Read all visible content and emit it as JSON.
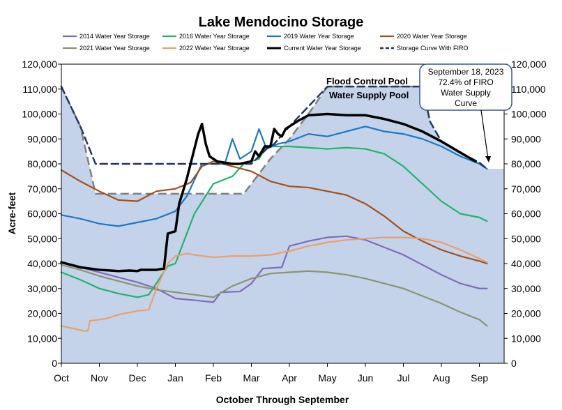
{
  "chart_data": {
    "type": "line",
    "title": "Lake Mendocino Storage",
    "xlabel": "October Through September",
    "ylabel": "Acre-feet",
    "ylim": [
      0,
      120000
    ],
    "xlim": [
      0,
      12
    ],
    "y_ticks": [
      0,
      10000,
      20000,
      30000,
      40000,
      50000,
      60000,
      70000,
      80000,
      90000,
      100000,
      110000,
      120000
    ],
    "y_tick_labels": [
      "0",
      "10,000",
      "20,000",
      "30,000",
      "40,000",
      "50,000",
      "60,000",
      "70,000",
      "80,000",
      "90,000",
      "100,000",
      "110,000",
      "120,000"
    ],
    "x_ticks": [
      0,
      1,
      2,
      3,
      4,
      5,
      6,
      7,
      8,
      9,
      10,
      11
    ],
    "x_tick_labels": [
      "Oct",
      "Nov",
      "Dec",
      "Jan",
      "Feb",
      "Mar",
      "Apr",
      "May",
      "Jun",
      "Jul",
      "Aug",
      "Sep"
    ],
    "grid": false,
    "legend_position": "top",
    "annotations": {
      "flood_control_pool": "Flood Control Pool",
      "water_supply_pool": "Water Supply Pool",
      "callout": [
        "September 18, 2023",
        "72.4% of FIRO",
        "Water Supply",
        "Curve"
      ]
    },
    "series": [
      {
        "name": "2014 Water Year Storage",
        "color": "#7f6bb8",
        "width": 2.2,
        "points": [
          [
            0,
            40500
          ],
          [
            0.5,
            38500
          ],
          [
            1,
            36500
          ],
          [
            1.5,
            34500
          ],
          [
            2,
            32500
          ],
          [
            2.5,
            30000
          ],
          [
            3,
            26000
          ],
          [
            3.5,
            25300
          ],
          [
            4,
            24500
          ],
          [
            4.2,
            28500
          ],
          [
            4.7,
            28800
          ],
          [
            5,
            32000
          ],
          [
            5.3,
            38000
          ],
          [
            5.8,
            38500
          ],
          [
            6,
            47000
          ],
          [
            6.5,
            49000
          ],
          [
            7,
            50500
          ],
          [
            7.5,
            51000
          ],
          [
            8,
            49500
          ],
          [
            8.5,
            46500
          ],
          [
            9,
            43500
          ],
          [
            9.5,
            39500
          ],
          [
            10,
            35500
          ],
          [
            10.5,
            32000
          ],
          [
            11,
            30000
          ],
          [
            11.2,
            30000
          ]
        ]
      },
      {
        "name": "2016 Water Year Storage",
        "color": "#22b36b",
        "width": 2.2,
        "points": [
          [
            0,
            36500
          ],
          [
            0.5,
            33500
          ],
          [
            1,
            30000
          ],
          [
            1.5,
            28000
          ],
          [
            2,
            26500
          ],
          [
            2.3,
            27500
          ],
          [
            2.8,
            39000
          ],
          [
            3,
            40000
          ],
          [
            3.5,
            60000
          ],
          [
            4,
            72000
          ],
          [
            4.5,
            75000
          ],
          [
            4.8,
            80000
          ],
          [
            5.2,
            82000
          ],
          [
            5.4,
            87000
          ],
          [
            6,
            87000
          ],
          [
            6.5,
            86500
          ],
          [
            7,
            86000
          ],
          [
            7.5,
            86500
          ],
          [
            8,
            86000
          ],
          [
            8.5,
            84000
          ],
          [
            9,
            79000
          ],
          [
            9.5,
            72000
          ],
          [
            10,
            65000
          ],
          [
            10.5,
            60000
          ],
          [
            11,
            58500
          ],
          [
            11.2,
            57000
          ]
        ]
      },
      {
        "name": "2019 Water Year Storage",
        "color": "#1f77c4",
        "width": 2.2,
        "points": [
          [
            0,
            59500
          ],
          [
            0.5,
            58000
          ],
          [
            1,
            56000
          ],
          [
            1.5,
            55000
          ],
          [
            2,
            56500
          ],
          [
            2.5,
            58000
          ],
          [
            3,
            61000
          ],
          [
            3.3,
            67000
          ],
          [
            3.7,
            80000
          ],
          [
            4,
            80000
          ],
          [
            4.3,
            80000
          ],
          [
            4.5,
            90000
          ],
          [
            4.7,
            82000
          ],
          [
            5,
            85000
          ],
          [
            5.2,
            94000
          ],
          [
            5.4,
            86000
          ],
          [
            5.7,
            88000
          ],
          [
            6,
            89000
          ],
          [
            6.5,
            92000
          ],
          [
            7,
            91000
          ],
          [
            7.5,
            93000
          ],
          [
            8,
            95000
          ],
          [
            8.5,
            93000
          ],
          [
            9,
            92000
          ],
          [
            9.5,
            90000
          ],
          [
            10,
            87000
          ],
          [
            10.5,
            83000
          ],
          [
            11,
            80000
          ],
          [
            11.2,
            78000
          ]
        ]
      },
      {
        "name": "2020 Water Year Storage",
        "color": "#a0501e",
        "width": 2.2,
        "points": [
          [
            0,
            77500
          ],
          [
            0.5,
            73000
          ],
          [
            1,
            69000
          ],
          [
            1.5,
            65500
          ],
          [
            2,
            65000
          ],
          [
            2.5,
            69000
          ],
          [
            3,
            70000
          ],
          [
            3.4,
            72500
          ],
          [
            3.7,
            79000
          ],
          [
            4,
            81000
          ],
          [
            4.5,
            79000
          ],
          [
            5,
            77000
          ],
          [
            5.5,
            73000
          ],
          [
            6,
            71000
          ],
          [
            6.5,
            70500
          ],
          [
            7,
            69000
          ],
          [
            7.5,
            67500
          ],
          [
            8,
            64000
          ],
          [
            8.5,
            59000
          ],
          [
            9,
            53000
          ],
          [
            9.5,
            49000
          ],
          [
            10,
            45500
          ],
          [
            10.5,
            43000
          ],
          [
            11,
            41000
          ],
          [
            11.2,
            40000
          ]
        ]
      },
      {
        "name": "2021 Water Year Storage",
        "color": "#8a9472",
        "width": 2.2,
        "points": [
          [
            0,
            39500
          ],
          [
            0.5,
            37500
          ],
          [
            1,
            35000
          ],
          [
            1.5,
            33000
          ],
          [
            2,
            31000
          ],
          [
            2.5,
            29500
          ],
          [
            3,
            28500
          ],
          [
            3.5,
            27500
          ],
          [
            4,
            26500
          ],
          [
            4.5,
            31000
          ],
          [
            5,
            34000
          ],
          [
            5.5,
            36000
          ],
          [
            6,
            36500
          ],
          [
            6.5,
            37000
          ],
          [
            7,
            36500
          ],
          [
            7.5,
            35500
          ],
          [
            8,
            34000
          ],
          [
            8.5,
            32000
          ],
          [
            9,
            30000
          ],
          [
            9.5,
            27000
          ],
          [
            10,
            24000
          ],
          [
            10.5,
            20500
          ],
          [
            11,
            17500
          ],
          [
            11.2,
            15000
          ]
        ]
      },
      {
        "name": "2022 Water Year Storage",
        "color": "#e8a070",
        "width": 2.2,
        "points": [
          [
            0,
            15000
          ],
          [
            0.3,
            14000
          ],
          [
            0.6,
            13000
          ],
          [
            0.7,
            13000
          ],
          [
            0.75,
            17000
          ],
          [
            1.2,
            18000
          ],
          [
            1.5,
            19500
          ],
          [
            2,
            21000
          ],
          [
            2.3,
            21500
          ],
          [
            2.5,
            30000
          ],
          [
            2.8,
            40000
          ],
          [
            3,
            43000
          ],
          [
            3.3,
            44000
          ],
          [
            3.5,
            43500
          ],
          [
            4,
            42500
          ],
          [
            4.5,
            43000
          ],
          [
            5,
            43000
          ],
          [
            5.5,
            43500
          ],
          [
            6,
            45000
          ],
          [
            6.5,
            47000
          ],
          [
            7,
            48500
          ],
          [
            7.5,
            49500
          ],
          [
            8,
            50000
          ],
          [
            8.5,
            50500
          ],
          [
            9,
            50500
          ],
          [
            9.5,
            50000
          ],
          [
            10,
            48500
          ],
          [
            10.5,
            45500
          ],
          [
            11,
            42000
          ],
          [
            11.2,
            40500
          ]
        ]
      },
      {
        "name": "Current Water Year Storage",
        "color": "#000000",
        "width": 3.5,
        "points": [
          [
            0,
            40500
          ],
          [
            0.5,
            38500
          ],
          [
            1,
            37500
          ],
          [
            1.5,
            37000
          ],
          [
            1.8,
            37200
          ],
          [
            2,
            37000
          ],
          [
            2.1,
            37500
          ],
          [
            2.5,
            37500
          ],
          [
            2.7,
            38000
          ],
          [
            2.8,
            52000
          ],
          [
            3,
            53000
          ],
          [
            3.1,
            64000
          ],
          [
            3.3,
            74000
          ],
          [
            3.4,
            80000
          ],
          [
            3.6,
            92000
          ],
          [
            3.7,
            96000
          ],
          [
            3.8,
            88000
          ],
          [
            3.9,
            83000
          ],
          [
            4.1,
            81000
          ],
          [
            4.5,
            80000
          ],
          [
            4.7,
            80000
          ],
          [
            5,
            81000
          ],
          [
            5.1,
            85000
          ],
          [
            5.2,
            83000
          ],
          [
            5.35,
            87000
          ],
          [
            5.5,
            87000
          ],
          [
            5.6,
            94000
          ],
          [
            5.7,
            92000
          ],
          [
            5.8,
            91000
          ],
          [
            5.9,
            94000
          ],
          [
            6.2,
            97000
          ],
          [
            6.5,
            99500
          ],
          [
            7,
            100000
          ],
          [
            7.5,
            99500
          ],
          [
            8,
            99500
          ],
          [
            8.5,
            98000
          ],
          [
            9,
            96000
          ],
          [
            9.5,
            93000
          ],
          [
            10,
            89000
          ],
          [
            10.5,
            84500
          ],
          [
            10.9,
            81000
          ]
        ]
      },
      {
        "name": "Storage Curve With FIRO",
        "color": "#1f3864",
        "width": 2.5,
        "dash": true,
        "points": [
          [
            0,
            111000
          ],
          [
            0.5,
            95000
          ],
          [
            0.9,
            80000
          ],
          [
            5.0,
            80000
          ],
          [
            5.2,
            83000
          ],
          [
            5.4,
            86000
          ],
          [
            5.6,
            88000
          ],
          [
            6.0,
            95000
          ],
          [
            6.5,
            103000
          ],
          [
            7,
            111000
          ],
          [
            8,
            111000
          ],
          [
            9,
            111000
          ],
          [
            9.5,
            111000
          ],
          [
            9.7,
            97000
          ],
          [
            10,
            89000
          ],
          [
            10.5,
            84500
          ],
          [
            11,
            80500
          ],
          [
            11.2,
            78000
          ]
        ]
      }
    ],
    "flood_pool_region": {
      "upper": [
        [
          0,
          120000
        ],
        [
          12,
          120000
        ]
      ],
      "lower": [
        [
          0,
          111000
        ],
        [
          0.5,
          95000
        ],
        [
          0.9,
          68000
        ],
        [
          4.8,
          68000
        ],
        [
          5.0,
          72000
        ],
        [
          5.5,
          82000
        ],
        [
          6.0,
          90000
        ],
        [
          6.5,
          100000
        ],
        [
          7,
          111000
        ],
        [
          9.5,
          111000
        ],
        [
          9.7,
          97000
        ],
        [
          10,
          89000
        ],
        [
          10.5,
          84500
        ],
        [
          11,
          80500
        ],
        [
          11.2,
          78000
        ]
      ]
    },
    "water_supply_curve": {
      "color": "#808080",
      "points": [
        [
          0,
          111000
        ],
        [
          0.5,
          95000
        ],
        [
          0.9,
          68000
        ],
        [
          4.8,
          68000
        ],
        [
          5.0,
          72000
        ],
        [
          5.5,
          82000
        ],
        [
          6.0,
          90000
        ],
        [
          6.5,
          100000
        ],
        [
          7,
          111000
        ],
        [
          9.5,
          111000
        ]
      ]
    }
  }
}
